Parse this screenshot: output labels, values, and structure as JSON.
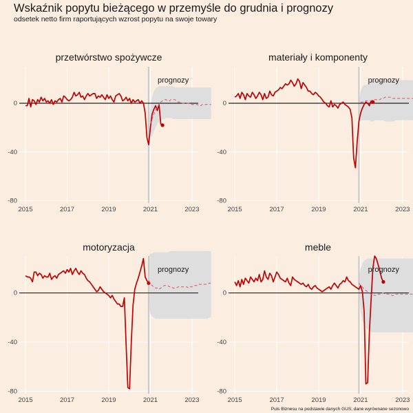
{
  "title": "Wskaźnik popytu bieżącego w przemyśle do grudnia i prognozy",
  "subtitle": "odsetek netto firm raportujących wzrost popytu na swoje towary",
  "source": "Puls Biznesu na podstawie danych GUS; dane wyrównane sezonowo",
  "colors": {
    "background": "#fbeee1",
    "history": "#c00000",
    "forecast": "#d9607a",
    "band": "#dcdcdf",
    "grid": "#ffffff",
    "zero": "#222222"
  },
  "chart_data": [
    {
      "type": "line",
      "title": "przetwórstwo spożywcze",
      "forecast_label": "prognozy",
      "xlim": [
        2014.7,
        2023.3
      ],
      "ylim": [
        -82,
        30
      ],
      "x_ticks": [
        2015,
        2017,
        2019,
        2021,
        2023
      ],
      "y_ticks": [
        0,
        -40,
        -80
      ],
      "history": {
        "start": [
          2015,
          1
        ],
        "step_months": 1,
        "values": [
          -2,
          -2,
          4,
          -3,
          3,
          2,
          -1,
          3,
          1,
          5,
          2,
          4,
          1,
          2,
          0,
          3,
          -1,
          2,
          1,
          3,
          4,
          1,
          6,
          5,
          3,
          2,
          3,
          5,
          9,
          6,
          7,
          9,
          5,
          6,
          3,
          6,
          8,
          6,
          7,
          8,
          8,
          4,
          6,
          5,
          7,
          5,
          3,
          7,
          4,
          6,
          3,
          1,
          6,
          7,
          8,
          6,
          2,
          3,
          5,
          2,
          4,
          0,
          3,
          1,
          2,
          3,
          0,
          2,
          0,
          -8,
          -28,
          -34,
          -20,
          -9,
          -5,
          -2,
          -6,
          -1,
          -17,
          -18
        ]
      },
      "forecast": {
        "start": [
          2021,
          1
        ],
        "step_months": 1,
        "values": [
          -17,
          -13,
          -9,
          -6,
          -3,
          -1,
          1,
          2,
          3,
          3,
          2,
          2,
          3,
          3,
          3,
          2,
          1,
          1,
          0,
          0,
          0,
          0,
          0,
          0,
          -1,
          -1,
          -1,
          -1,
          -2,
          -2,
          -1,
          -1,
          -1,
          -1,
          -1,
          -1
        ]
      },
      "band": {
        "start": [
          2020,
          12
        ],
        "step_months": 1,
        "upper": [
          -16,
          -4,
          5,
          10,
          12,
          13,
          14,
          14,
          14,
          14,
          14,
          14,
          14,
          14,
          14,
          13,
          13,
          13,
          13,
          13,
          13,
          13,
          13,
          13,
          13,
          13,
          13,
          13,
          13,
          13,
          13,
          13,
          13,
          13,
          13,
          13,
          13
        ],
        "lower": [
          -18,
          -28,
          -27,
          -23,
          -20,
          -17,
          -15,
          -14,
          -13,
          -13,
          -12,
          -12,
          -12,
          -12,
          -13,
          -13,
          -13,
          -13,
          -13,
          -13,
          -13,
          -13,
          -13,
          -13,
          -13,
          -13,
          -13,
          -13,
          -13,
          -13,
          -13,
          -13,
          -13,
          -13,
          -13,
          -13,
          -13
        ]
      }
    },
    {
      "type": "line",
      "title": "materiały i komponenty",
      "forecast_label": "prognozy",
      "xlim": [
        2014.7,
        2023.3
      ],
      "ylim": [
        -82,
        30
      ],
      "x_ticks": [
        2015,
        2017,
        2019,
        2021,
        2023
      ],
      "y_ticks": [
        0,
        -40,
        -80
      ],
      "history": {
        "start": [
          2015,
          1
        ],
        "step_months": 1,
        "values": [
          5,
          6,
          8,
          4,
          9,
          7,
          3,
          8,
          6,
          5,
          9,
          7,
          4,
          6,
          9,
          7,
          3,
          8,
          4,
          5,
          10,
          7,
          6,
          9,
          10,
          11,
          13,
          12,
          14,
          16,
          15,
          16,
          19,
          17,
          14,
          16,
          20,
          18,
          12,
          17,
          15,
          13,
          10,
          10,
          8,
          7,
          9,
          8,
          6,
          5,
          3,
          1,
          0,
          -2,
          -3,
          2,
          -3,
          -1,
          -2,
          -4,
          -1,
          0,
          1,
          -1,
          -2,
          -3,
          -5,
          -12,
          -45,
          -53,
          -32,
          -15,
          -8,
          -4,
          -1,
          1,
          0,
          -2,
          2,
          1
        ]
      },
      "forecast": {
        "start": [
          2021,
          1
        ],
        "step_months": 1,
        "values": [
          1,
          1,
          1,
          2,
          2,
          2,
          2,
          3,
          3,
          3,
          3,
          3,
          4,
          4,
          5,
          5,
          5,
          5,
          4,
          4,
          4,
          4,
          4,
          4,
          4,
          4,
          4,
          4,
          4,
          4,
          4,
          4,
          4,
          4,
          5,
          5
        ]
      },
      "band": {
        "start": [
          2020,
          12
        ],
        "step_months": 1,
        "upper": [
          2,
          10,
          14,
          15,
          15,
          16,
          17,
          18,
          19,
          19,
          19,
          19,
          19,
          19,
          20,
          20,
          19,
          19,
          19,
          19,
          19,
          19,
          19,
          19,
          19,
          19,
          19,
          19,
          19,
          19,
          19,
          19,
          19,
          19,
          19,
          19,
          19
        ],
        "lower": [
          0,
          -14,
          -14,
          -14,
          -14,
          -14,
          -14,
          -15,
          -15,
          -14,
          -14,
          -14,
          -14,
          -14,
          -14,
          -15,
          -15,
          -15,
          -15,
          -15,
          -15,
          -14,
          -14,
          -14,
          -14,
          -14,
          -14,
          -14,
          -14,
          -14,
          -14,
          -14,
          -14,
          -14,
          -14,
          -14,
          -14
        ]
      }
    },
    {
      "type": "line",
      "title": "motoryzacja",
      "forecast_label": "prognozy",
      "xlim": [
        2014.7,
        2023.3
      ],
      "ylim": [
        -82,
        30
      ],
      "x_ticks": [
        2015,
        2017,
        2019,
        2021,
        2023
      ],
      "y_ticks": [
        0,
        -40,
        -80
      ],
      "history": {
        "start": [
          2015,
          1
        ],
        "step_months": 1,
        "values": [
          14,
          13,
          13,
          12,
          9,
          17,
          17,
          14,
          16,
          15,
          12,
          14,
          13,
          13,
          16,
          11,
          13,
          14,
          12,
          15,
          16,
          17,
          18,
          16,
          19,
          17,
          20,
          15,
          18,
          20,
          17,
          15,
          18,
          16,
          15,
          12,
          10,
          9,
          7,
          5,
          3,
          1,
          2,
          5,
          3,
          1,
          0,
          -1,
          -2,
          -4,
          -2,
          -5,
          -7,
          -9,
          -9,
          -11,
          -11,
          -4,
          -42,
          -77,
          -78,
          -40,
          -10,
          3,
          8,
          12,
          17,
          22,
          28,
          13,
          10,
          8
        ]
      },
      "forecast": {
        "start": [
          2020,
          12
        ],
        "step_months": 1,
        "values": [
          10,
          8,
          6,
          5,
          4,
          4,
          3,
          4,
          5,
          6,
          6,
          6,
          5,
          5,
          4,
          4,
          4,
          5,
          5,
          5,
          5,
          5,
          5,
          4,
          5,
          5,
          6,
          6,
          6,
          7,
          7,
          7,
          7,
          7,
          7,
          8,
          8
        ]
      },
      "band": {
        "start": [
          2020,
          12
        ],
        "step_months": 1,
        "upper": [
          30,
          32,
          32,
          33,
          33,
          33,
          33,
          33,
          33,
          33,
          33,
          33,
          34,
          34,
          34,
          34,
          34,
          34,
          34,
          34,
          34,
          34,
          34,
          34,
          34,
          34,
          34,
          34,
          34,
          34,
          34,
          34,
          34,
          34,
          34,
          34,
          34
        ],
        "lower": [
          -10,
          -17,
          -19,
          -20,
          -21,
          -21,
          -21,
          -21,
          -21,
          -21,
          -21,
          -21,
          -21,
          -21,
          -21,
          -21,
          -21,
          -21,
          -21,
          -21,
          -21,
          -21,
          -21,
          -21,
          -21,
          -21,
          -21,
          -21,
          -21,
          -21,
          -21,
          -21,
          -21,
          -21,
          -21,
          -20,
          -20
        ]
      }
    },
    {
      "type": "line",
      "title": "meble",
      "forecast_label": "prognozy",
      "xlim": [
        2014.7,
        2023.3
      ],
      "ylim": [
        -82,
        30
      ],
      "x_ticks": [
        2015,
        2017,
        2019,
        2021,
        2023
      ],
      "y_ticks": [
        0,
        -40,
        -80
      ],
      "history": {
        "start": [
          2015,
          1
        ],
        "step_months": 1,
        "values": [
          9,
          6,
          10,
          5,
          11,
          7,
          12,
          10,
          8,
          13,
          11,
          9,
          12,
          10,
          15,
          9,
          11,
          18,
          13,
          11,
          16,
          14,
          9,
          13,
          17,
          15,
          12,
          11,
          10,
          9,
          12,
          8,
          6,
          13,
          11,
          10,
          9,
          8,
          7,
          8,
          6,
          5,
          7,
          4,
          3,
          5,
          6,
          4,
          3,
          2,
          1,
          2,
          3,
          4,
          5,
          3,
          6,
          8,
          6,
          4,
          7,
          8,
          10,
          9,
          13,
          10,
          9,
          7,
          6,
          5,
          4,
          3,
          6,
          1,
          -15,
          -74,
          -73,
          -32,
          -5,
          20,
          30,
          28,
          23,
          18,
          12,
          9
        ]
      },
      "forecast": {
        "start": [
          2020,
          12
        ],
        "step_months": 1,
        "values": [
          8,
          6,
          5,
          3,
          2,
          1,
          0,
          -1,
          -1,
          -2,
          -2,
          -1,
          -1,
          0,
          0,
          -1,
          -1,
          -1,
          -1,
          -2,
          -2,
          -1,
          -1,
          -1,
          -1,
          -1,
          -1,
          -1,
          -1,
          -1,
          -1,
          -1,
          -1,
          -1,
          -1,
          -1,
          -1
        ]
      },
      "band": {
        "start": [
          2020,
          12
        ],
        "step_months": 1,
        "upper": [
          14,
          20,
          24,
          26,
          27,
          28,
          28,
          28,
          28,
          28,
          28,
          28,
          28,
          28,
          28,
          28,
          28,
          28,
          28,
          28,
          28,
          28,
          28,
          28,
          28,
          28,
          28,
          28,
          28,
          28,
          28,
          28,
          28,
          28,
          28,
          28,
          28
        ],
        "lower": [
          4,
          -16,
          -22,
          -26,
          -28,
          -30,
          -31,
          -32,
          -32,
          -32,
          -32,
          -32,
          -32,
          -32,
          -32,
          -32,
          -32,
          -32,
          -32,
          -32,
          -32,
          -32,
          -32,
          -32,
          -32,
          -32,
          -32,
          -32,
          -32,
          -32,
          -32,
          -32,
          -32,
          -32,
          -32,
          -32,
          -32
        ]
      }
    }
  ]
}
